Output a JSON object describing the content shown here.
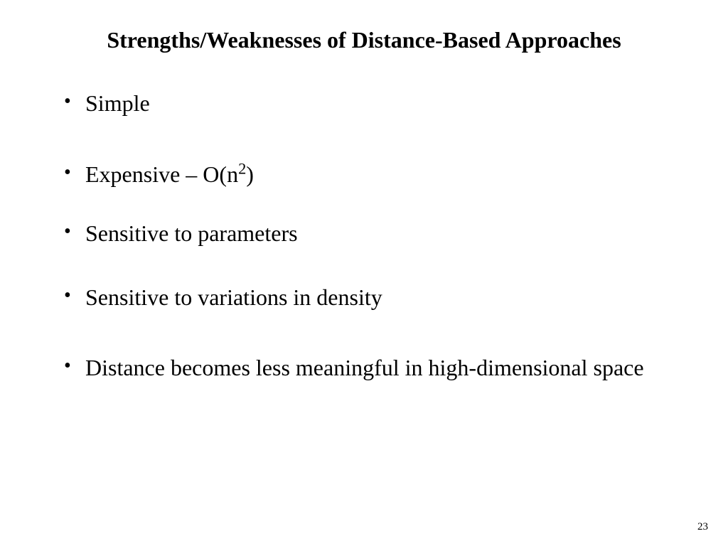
{
  "slide": {
    "title": "Strengths/Weaknesses of Distance-Based Approaches",
    "bullets": [
      {
        "text": "Simple",
        "has_sup": false
      },
      {
        "text_pre": "Expensive – O(n",
        "sup": "2",
        "text_post": ")",
        "has_sup": true
      },
      {
        "text": "Sensitive to parameters",
        "has_sup": false
      },
      {
        "text": "Sensitive to variations in density",
        "has_sup": false
      },
      {
        "text": "Distance becomes less meaningful in high-dimensional space",
        "has_sup": false
      }
    ],
    "page_number": "23",
    "style": {
      "background_color": "#ffffff",
      "text_color": "#000000",
      "font_family": "Times New Roman",
      "title_fontsize": 32,
      "title_weight": "bold",
      "body_fontsize": 32,
      "page_number_fontsize": 15
    }
  }
}
